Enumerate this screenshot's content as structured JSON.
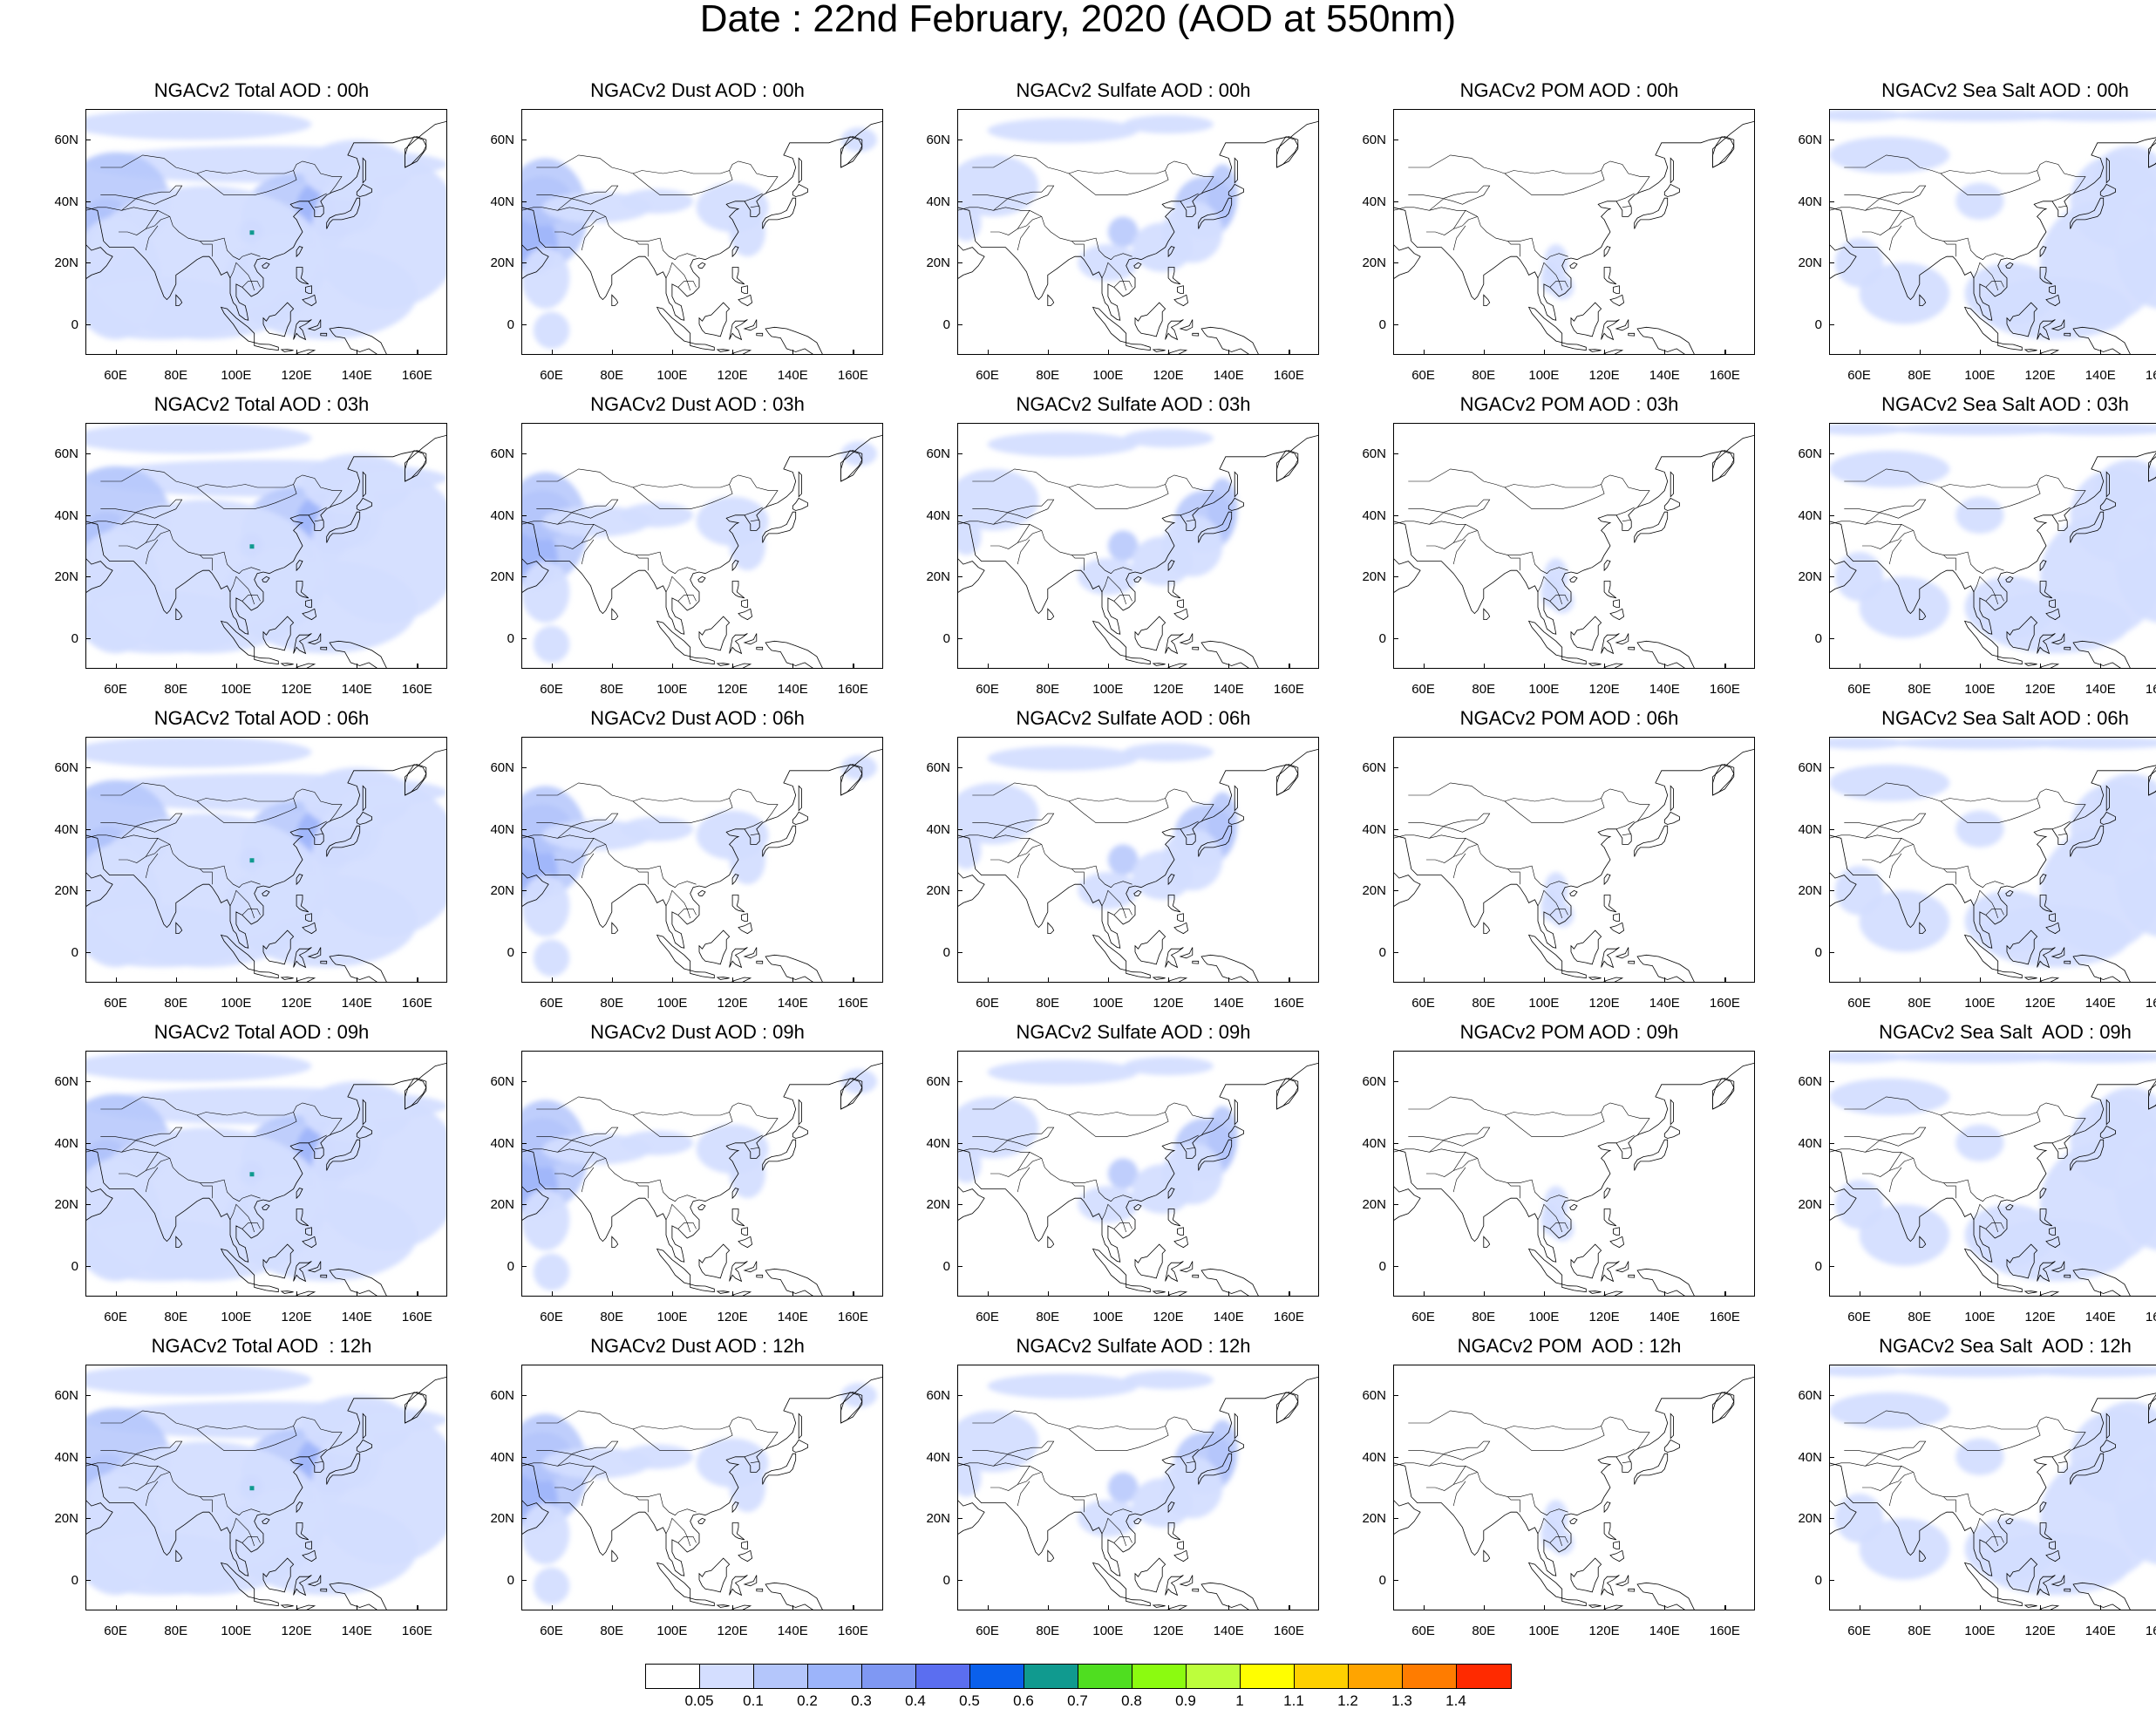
{
  "page_title": "Date : 22nd February, 2020 (AOD at 550nm)",
  "lat_ticks": [
    "60N",
    "40N",
    "20N",
    "0"
  ],
  "lon_ticks": [
    "60E",
    "80E",
    "100E",
    "120E",
    "140E",
    "160E"
  ],
  "map_extent": {
    "lon_range": [
      50,
      170
    ],
    "lat_range": [
      -10,
      70
    ]
  },
  "columns": [
    "Total",
    "Dust",
    "Sulfate",
    "POM",
    "Sea Salt"
  ],
  "rows": [
    "00h",
    "03h",
    "06h",
    "09h",
    "12h"
  ],
  "panels": [
    {
      "title": "NGACv2 Total AOD : 00h",
      "variable": "Total",
      "hour": "00h"
    },
    {
      "title": "NGACv2 Dust AOD : 00h",
      "variable": "Dust",
      "hour": "00h"
    },
    {
      "title": "NGACv2 Sulfate AOD : 00h",
      "variable": "Sulfate",
      "hour": "00h"
    },
    {
      "title": "NGACv2 POM AOD : 00h",
      "variable": "POM",
      "hour": "00h"
    },
    {
      "title": "NGACv2 Sea Salt AOD : 00h",
      "variable": "Sea Salt",
      "hour": "00h"
    },
    {
      "title": "NGACv2 Total AOD : 03h",
      "variable": "Total",
      "hour": "03h"
    },
    {
      "title": "NGACv2 Dust AOD : 03h",
      "variable": "Dust",
      "hour": "03h"
    },
    {
      "title": "NGACv2 Sulfate AOD : 03h",
      "variable": "Sulfate",
      "hour": "03h"
    },
    {
      "title": "NGACv2 POM AOD : 03h",
      "variable": "POM",
      "hour": "03h"
    },
    {
      "title": "NGACv2 Sea Salt AOD : 03h",
      "variable": "Sea Salt",
      "hour": "03h"
    },
    {
      "title": "NGACv2 Total AOD : 06h",
      "variable": "Total",
      "hour": "06h"
    },
    {
      "title": "NGACv2 Dust AOD : 06h",
      "variable": "Dust",
      "hour": "06h"
    },
    {
      "title": "NGACv2 Sulfate AOD : 06h",
      "variable": "Sulfate",
      "hour": "06h"
    },
    {
      "title": "NGACv2 POM AOD : 06h",
      "variable": "POM",
      "hour": "06h"
    },
    {
      "title": "NGACv2 Sea Salt AOD : 06h",
      "variable": "Sea Salt",
      "hour": "06h"
    },
    {
      "title": "NGACv2 Total AOD : 09h",
      "variable": "Total",
      "hour": "09h"
    },
    {
      "title": "NGACv2 Dust AOD : 09h",
      "variable": "Dust",
      "hour": "09h"
    },
    {
      "title": "NGACv2 Sulfate AOD : 09h",
      "variable": "Sulfate",
      "hour": "09h"
    },
    {
      "title": "NGACv2 POM AOD : 09h",
      "variable": "POM",
      "hour": "09h"
    },
    {
      "title": "NGACv2 Sea Salt  AOD : 09h",
      "variable": "Sea Salt",
      "hour": "09h"
    },
    {
      "title": "NGACv2 Total AOD  : 12h",
      "variable": "Total",
      "hour": "12h"
    },
    {
      "title": "NGACv2 Dust AOD : 12h",
      "variable": "Dust",
      "hour": "12h"
    },
    {
      "title": "NGACv2 Sulfate AOD : 12h",
      "variable": "Sulfate",
      "hour": "12h"
    },
    {
      "title": "NGACv2 POM  AOD : 12h",
      "variable": "POM",
      "hour": "12h"
    },
    {
      "title": "NGACv2 Sea Salt  AOD : 12h",
      "variable": "Sea Salt",
      "hour": "12h"
    }
  ],
  "colorbar": {
    "labels": [
      "0.05",
      "0.1",
      "0.2",
      "0.3",
      "0.4",
      "0.5",
      "0.6",
      "0.7",
      "0.8",
      "0.9",
      "1",
      "1.1",
      "1.2",
      "1.3",
      "1.4"
    ],
    "colors": [
      "#ffffff",
      "#d4deff",
      "#b4c6fb",
      "#9cb4fa",
      "#7f98f3",
      "#5b6ef0",
      "#0a60ec",
      "#109a8f",
      "#4fde20",
      "#8bfb10",
      "#bdfe3c",
      "#fffe00",
      "#fed000",
      "#ffa400",
      "#ff7c00",
      "#ff2a00"
    ]
  }
}
